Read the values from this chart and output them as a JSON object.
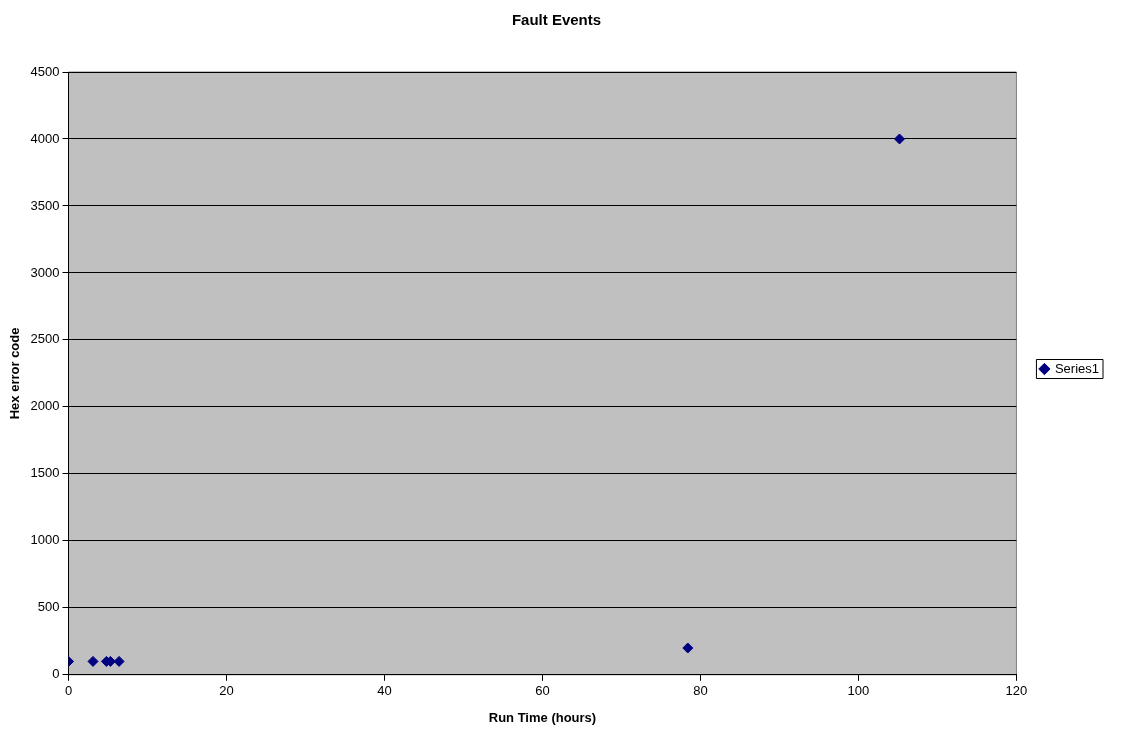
{
  "chart_data": {
    "type": "scatter",
    "title": "Fault Events",
    "xlabel": "Run Time (hours)",
    "ylabel": "Hex error code",
    "series": [
      {
        "name": "Series1",
        "color": "#000080",
        "x": [
          0,
          3.1,
          4.8,
          5.3,
          6.4,
          78.4,
          105.2
        ],
        "values": [
          100,
          100,
          100,
          100,
          100,
          200,
          4000
        ]
      }
    ],
    "xlim": [
      0,
      120
    ],
    "xticks": [
      0,
      20,
      40,
      60,
      80,
      100,
      120
    ],
    "ylim": [
      0,
      4500
    ],
    "yticks": [
      0,
      500,
      1000,
      1500,
      2000,
      2500,
      3000,
      3500,
      4000,
      4500
    ],
    "grid": "y",
    "legend": "right",
    "marker": "diamond"
  }
}
